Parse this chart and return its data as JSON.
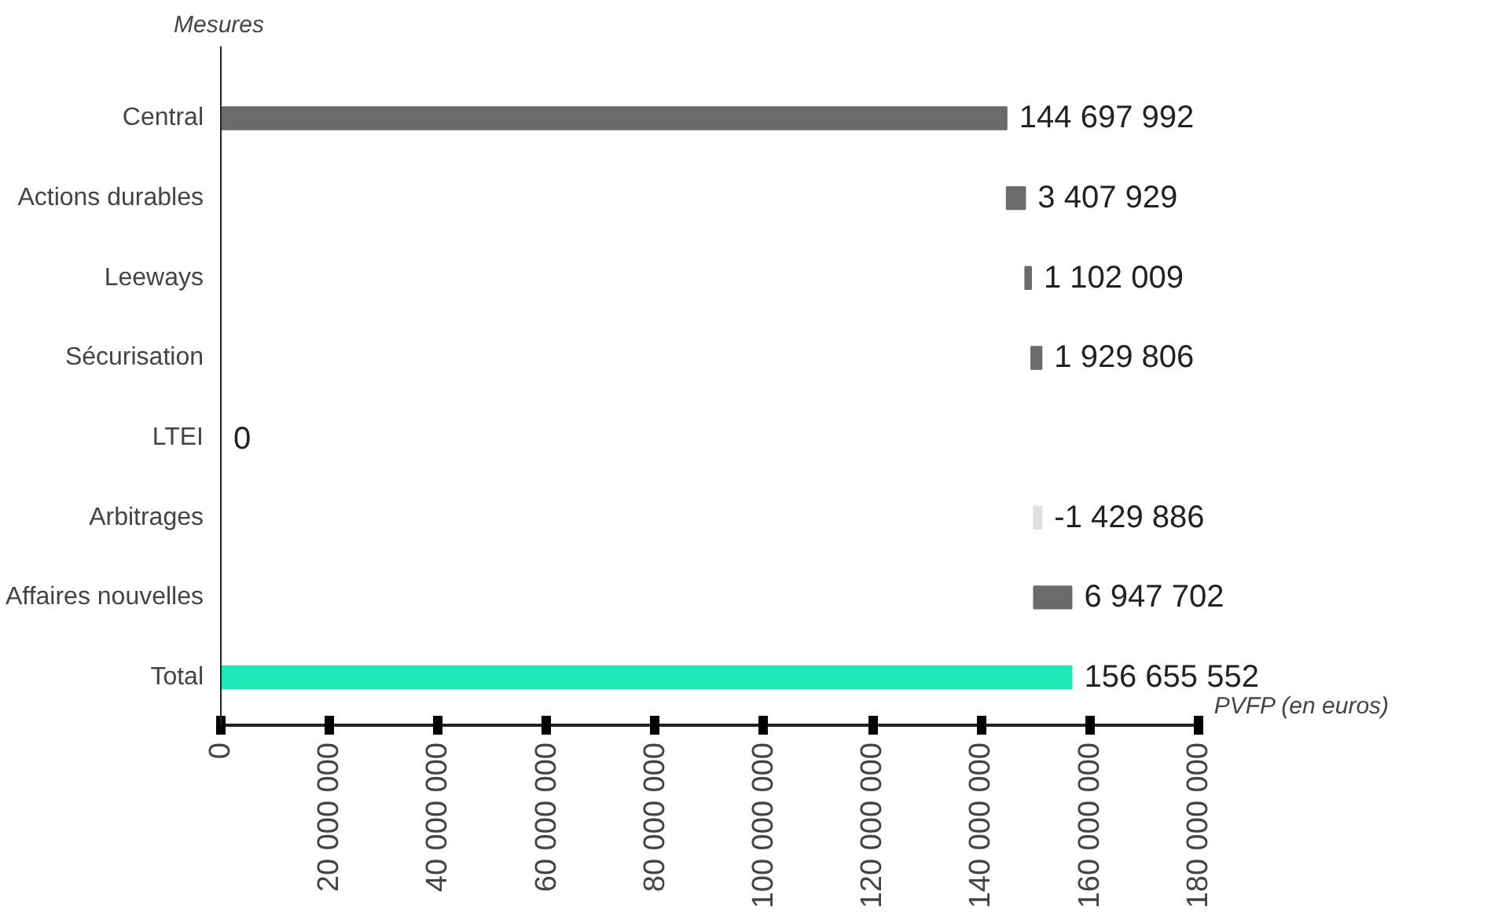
{
  "chart_data": {
    "type": "bar",
    "orientation": "horizontal",
    "ylabel": "Mesures",
    "xlabel": "PVFP (en euros)",
    "categories": [
      "Central",
      "Actions durables",
      "Leeways",
      "Sécurisation",
      "LTEI",
      "Arbitrages",
      "Affaires nouvelles",
      "Total"
    ],
    "values": [
      144697992,
      3407929,
      1102009,
      1929806,
      0,
      -1429886,
      6947702,
      156655552
    ],
    "base": [
      0,
      144697992,
      148105921,
      149207930,
      0,
      151137736,
      149707850,
      0
    ],
    "colors": [
      "#6b6b6b",
      "#6b6b6b",
      "#6b6b6b",
      "#6b6b6b",
      "#6b6b6b",
      "#e0e0e0",
      "#6b6b6b",
      "#1de9b6"
    ],
    "data_labels": true,
    "xlim": [
      0,
      180000000
    ],
    "xticks": [
      0,
      {
        "value": 20000000,
        "label": "20 000 000"
      },
      {
        "value": 40000000,
        "label": "40 000 000"
      },
      {
        "value": 60000000,
        "label": "60 000 000"
      },
      {
        "value": 80000000,
        "label": "80 000 000"
      },
      {
        "value": 100000000,
        "label": "100 000 000"
      },
      {
        "value": 120000000,
        "label": "120 000 000"
      },
      {
        "value": 140000000,
        "label": "140 000 000"
      },
      {
        "value": 160000000,
        "label": "160 000 000"
      },
      {
        "value": 180000000,
        "label": "180 000 000"
      }
    ],
    "grid": false
  }
}
